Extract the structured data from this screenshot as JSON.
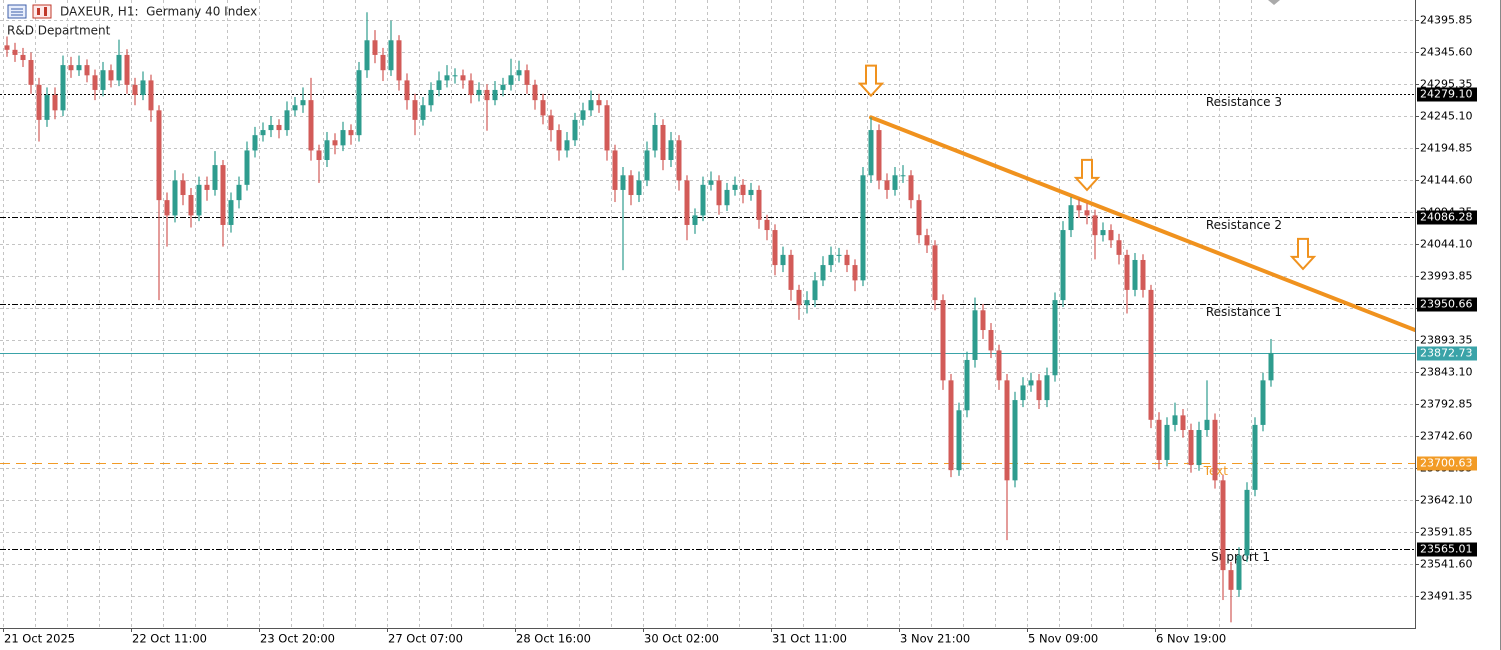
{
  "header": {
    "symbol": "DAXEUR, H1:  Germany 40 Index",
    "owner": "R&D Department"
  },
  "chart_data": {
    "type": "candlestick",
    "up_color": "#2e9c8e",
    "down_color": "#d25b58",
    "grid": true,
    "ylim": [
      23441.1,
      24427.25
    ],
    "yticks": [
      24395.85,
      {
        "value": 24345.6,
        "label": "24345.60"
      },
      24295.35,
      {
        "value": 24245.1,
        "label": "24245.10"
      },
      24194.85,
      {
        "value": 24144.6,
        "label": "24144.60"
      },
      24094.35,
      {
        "value": 24044.1,
        "label": "24044.10"
      },
      23993.85,
      {
        "value": 23943.6,
        "label": "23943.60"
      },
      23893.35,
      {
        "value": 23843.1,
        "label": "23843.10"
      },
      23792.85,
      {
        "value": 23742.6,
        "label": "23742.60"
      },
      23692.35,
      {
        "value": 23642.1,
        "label": "23642.10"
      },
      23591.85,
      {
        "value": 23541.6,
        "label": "23541.60"
      },
      23491.35
    ],
    "categories": [
      "21 Oct 2025",
      null,
      null,
      null,
      null,
      null,
      null,
      null,
      null,
      null,
      null,
      null,
      null,
      null,
      null,
      null,
      "22 Oct 11:00",
      null,
      null,
      null,
      null,
      null,
      null,
      null,
      null,
      null,
      null,
      null,
      null,
      null,
      null,
      null,
      "23 Oct 20:00",
      null,
      null,
      null,
      null,
      null,
      null,
      null,
      null,
      null,
      null,
      null,
      null,
      null,
      null,
      null,
      "27 Oct 07:00",
      null,
      null,
      null,
      null,
      null,
      null,
      null,
      null,
      null,
      null,
      null,
      null,
      null,
      null,
      null,
      "28 Oct 16:00",
      null,
      null,
      null,
      null,
      null,
      null,
      null,
      null,
      null,
      null,
      null,
      null,
      null,
      null,
      null,
      "30 Oct 02:00",
      null,
      null,
      null,
      null,
      null,
      null,
      null,
      null,
      null,
      null,
      null,
      null,
      null,
      null,
      null,
      "31 Oct 11:00",
      null,
      null,
      null,
      null,
      null,
      null,
      null,
      null,
      null,
      null,
      null,
      null,
      null,
      null,
      null,
      "3 Nov 21:00",
      null,
      null,
      null,
      null,
      null,
      null,
      null,
      null,
      null,
      null,
      null,
      null,
      null,
      null,
      null,
      "5 Nov 09:00",
      null,
      null,
      null,
      null,
      null,
      null,
      null,
      null,
      null,
      null,
      null,
      null,
      null,
      null,
      null,
      "6 Nov 19:00",
      null,
      null,
      null,
      null,
      null,
      null,
      null,
      null,
      null,
      null,
      null,
      null,
      null,
      null
    ],
    "ohlc": [
      [
        24356,
        24370,
        24338,
        24349
      ],
      [
        24349,
        24360,
        24330,
        24341
      ],
      [
        24341,
        24352,
        24322,
        24333
      ],
      [
        24333,
        24345,
        24280,
        24294
      ],
      [
        24294,
        24305,
        24205,
        24239
      ],
      [
        24239,
        24290,
        24228,
        24278
      ],
      [
        24278,
        24290,
        24240,
        24254
      ],
      [
        24254,
        24340,
        24245,
        24325
      ],
      [
        24325,
        24338,
        24305,
        24317
      ],
      [
        24317,
        24340,
        24308,
        24325
      ],
      [
        24325,
        24334,
        24298,
        24309
      ],
      [
        24309,
        24318,
        24270,
        24286
      ],
      [
        24286,
        24330,
        24276,
        24317
      ],
      [
        24317,
        24326,
        24290,
        24301
      ],
      [
        24301,
        24365,
        24292,
        24341
      ],
      [
        24341,
        24350,
        24280,
        24294
      ],
      [
        24294,
        24305,
        24262,
        24278
      ],
      [
        24278,
        24315,
        24270,
        24301
      ],
      [
        24301,
        24310,
        24236,
        24254
      ],
      [
        24254,
        24262,
        23956,
        24113
      ],
      [
        24113,
        24125,
        24040,
        24089
      ],
      [
        24089,
        24160,
        24078,
        24144
      ],
      [
        24144,
        24155,
        24105,
        24121
      ],
      [
        24121,
        24132,
        24070,
        24089
      ],
      [
        24089,
        24150,
        24080,
        24137
      ],
      [
        24137,
        24150,
        24112,
        24129
      ],
      [
        24129,
        24190,
        24120,
        24168
      ],
      [
        24168,
        24176,
        24040,
        24074
      ],
      [
        24074,
        24125,
        24062,
        24113
      ],
      [
        24113,
        24150,
        24100,
        24137
      ],
      [
        24137,
        24205,
        24128,
        24191
      ],
      [
        24191,
        24228,
        24180,
        24215
      ],
      [
        24215,
        24235,
        24205,
        24223
      ],
      [
        24223,
        24245,
        24212,
        24231
      ],
      [
        24231,
        24240,
        24210,
        24223
      ],
      [
        24223,
        24268,
        24214,
        24254
      ],
      [
        24254,
        24275,
        24245,
        24262
      ],
      [
        24262,
        24290,
        24250,
        24270
      ],
      [
        24270,
        24305,
        24175,
        24191
      ],
      [
        24191,
        24200,
        24140,
        24176
      ],
      [
        24176,
        24220,
        24165,
        24207
      ],
      [
        24207,
        24218,
        24185,
        24199
      ],
      [
        24199,
        24236,
        24190,
        24223
      ],
      [
        24223,
        24232,
        24200,
        24215
      ],
      [
        24215,
        24330,
        24205,
        24317
      ],
      [
        24317,
        24408,
        24305,
        24364
      ],
      [
        24364,
        24380,
        24328,
        24341
      ],
      [
        24341,
        24352,
        24300,
        24317
      ],
      [
        24317,
        24395,
        24308,
        24364
      ],
      [
        24364,
        24372,
        24285,
        24301
      ],
      [
        24301,
        24312,
        24255,
        24270
      ],
      [
        24270,
        24280,
        24215,
        24239
      ],
      [
        24239,
        24275,
        24230,
        24262
      ],
      [
        24262,
        24298,
        24252,
        24286
      ],
      [
        24286,
        24315,
        24276,
        24301
      ],
      [
        24301,
        24325,
        24290,
        24309
      ],
      [
        24309,
        24320,
        24296,
        24309
      ],
      [
        24309,
        24318,
        24288,
        24301
      ],
      [
        24301,
        24312,
        24265,
        24278
      ],
      [
        24278,
        24298,
        24268,
        24286
      ],
      [
        24286,
        24295,
        24222,
        24270
      ],
      [
        24270,
        24300,
        24262,
        24286
      ],
      [
        24286,
        24305,
        24276,
        24294
      ],
      [
        24294,
        24335,
        24285,
        24309
      ],
      [
        24309,
        24332,
        24300,
        24317
      ],
      [
        24317,
        24326,
        24280,
        24294
      ],
      [
        24294,
        24302,
        24255,
        24270
      ],
      [
        24270,
        24280,
        24232,
        24246
      ],
      [
        24246,
        24255,
        24205,
        24223
      ],
      [
        24223,
        24232,
        24175,
        24191
      ],
      [
        24191,
        24220,
        24180,
        24207
      ],
      [
        24207,
        24250,
        24198,
        24239
      ],
      [
        24239,
        24266,
        24230,
        24254
      ],
      [
        24254,
        24285,
        24245,
        24270
      ],
      [
        24270,
        24280,
        24250,
        24262
      ],
      [
        24262,
        24270,
        24175,
        24191
      ],
      [
        24191,
        24200,
        24110,
        24129
      ],
      [
        24129,
        24165,
        24003,
        24152
      ],
      [
        24152,
        24160,
        24105,
        24121
      ],
      [
        24121,
        24158,
        24110,
        24144
      ],
      [
        24144,
        24205,
        24135,
        24191
      ],
      [
        24191,
        24250,
        24180,
        24231
      ],
      [
        24231,
        24240,
        24160,
        24176
      ],
      [
        24176,
        24220,
        24165,
        24207
      ],
      [
        24207,
        24215,
        24128,
        24144
      ],
      [
        24144,
        24152,
        24050,
        24074
      ],
      [
        24074,
        24100,
        24060,
        24089
      ],
      [
        24089,
        24150,
        24080,
        24137
      ],
      [
        24137,
        24158,
        24128,
        24144
      ],
      [
        24144,
        24152,
        24090,
        24105
      ],
      [
        24105,
        24140,
        24096,
        24129
      ],
      [
        24129,
        24150,
        24120,
        24137
      ],
      [
        24137,
        24146,
        24108,
        24121
      ],
      [
        24121,
        24140,
        24112,
        24129
      ],
      [
        24129,
        24136,
        24068,
        24082
      ],
      [
        24082,
        24090,
        24050,
        24066
      ],
      [
        24066,
        24075,
        23995,
        24011
      ],
      [
        24011,
        24040,
        24000,
        24027
      ],
      [
        24027,
        24035,
        23955,
        23972
      ],
      [
        23972,
        23980,
        23925,
        23948
      ],
      [
        23948,
        23970,
        23935,
        23956
      ],
      [
        23956,
        24000,
        23945,
        23987
      ],
      [
        23987,
        24025,
        23978,
        24011
      ],
      [
        24011,
        24040,
        24000,
        24027
      ],
      [
        24027,
        24038,
        24015,
        24027
      ],
      [
        24027,
        24035,
        24000,
        24011
      ],
      [
        24011,
        24020,
        23970,
        23987
      ],
      [
        23987,
        24165,
        23978,
        24152
      ],
      [
        24152,
        24243,
        24140,
        24223
      ],
      [
        24223,
        24232,
        24130,
        24144
      ],
      [
        24144,
        24155,
        24115,
        24129
      ],
      [
        24129,
        24165,
        24120,
        24152
      ],
      [
        24152,
        24168,
        24140,
        24152
      ],
      [
        24152,
        24160,
        24100,
        24113
      ],
      [
        24113,
        24122,
        24045,
        24058
      ],
      [
        24058,
        24068,
        24030,
        24042
      ],
      [
        24042,
        24050,
        23940,
        23956
      ],
      [
        23956,
        23965,
        23815,
        23830
      ],
      [
        23830,
        23840,
        23678,
        23689
      ],
      [
        23689,
        23795,
        23680,
        23783
      ],
      [
        23783,
        23875,
        23772,
        23862
      ],
      [
        23862,
        23960,
        23850,
        23940
      ],
      [
        23940,
        23950,
        23895,
        23909
      ],
      [
        23909,
        23920,
        23865,
        23877
      ],
      [
        23877,
        23886,
        23815,
        23830
      ],
      [
        23830,
        23840,
        23579,
        23673
      ],
      [
        23673,
        23812,
        23662,
        23799
      ],
      [
        23799,
        23835,
        23788,
        23822
      ],
      [
        23822,
        23842,
        23812,
        23830
      ],
      [
        23830,
        23840,
        23785,
        23799
      ],
      [
        23799,
        23850,
        23788,
        23838
      ],
      [
        23838,
        23968,
        23828,
        23956
      ],
      [
        23956,
        24080,
        23945,
        24066
      ],
      [
        24066,
        24118,
        24055,
        24105
      ],
      [
        24105,
        24115,
        24085,
        24097
      ],
      [
        24097,
        24108,
        24075,
        24089
      ],
      [
        24089,
        24098,
        24020,
        24058
      ],
      [
        24058,
        24078,
        24048,
        24066
      ],
      [
        24066,
        24075,
        24038,
        24050
      ],
      [
        24050,
        24060,
        24012,
        24027
      ],
      [
        24027,
        24035,
        23935,
        23972
      ],
      [
        23972,
        24030,
        23962,
        24019
      ],
      [
        24019,
        24028,
        23960,
        23972
      ],
      [
        23972,
        23980,
        23755,
        23768
      ],
      [
        23768,
        23780,
        23690,
        23705
      ],
      [
        23705,
        23772,
        23695,
        23760
      ],
      [
        23760,
        23795,
        23750,
        23775
      ],
      [
        23775,
        23785,
        23740,
        23752
      ],
      [
        23752,
        23762,
        23685,
        23697
      ],
      [
        23697,
        23765,
        23688,
        23752
      ],
      [
        23752,
        23830,
        23742,
        23768
      ],
      [
        23768,
        23778,
        23660,
        23673
      ],
      [
        23673,
        23682,
        23485,
        23532
      ],
      [
        23532,
        23545,
        23450,
        23501
      ],
      [
        23501,
        23568,
        23490,
        23555
      ],
      [
        23555,
        23670,
        23545,
        23658
      ],
      [
        23658,
        23772,
        23648,
        23760
      ],
      [
        23760,
        23842,
        23750,
        23830
      ],
      [
        23830,
        23895,
        23820,
        23873
      ]
    ],
    "hlines": [
      {
        "name": "Resistance 3",
        "value": 24279.1,
        "value_label": "24279.10",
        "color": "#000000",
        "style": "dotted"
      },
      {
        "name": "Resistance 2",
        "value": 24086.28,
        "color": "#000000",
        "style": "dashdot"
      },
      {
        "name": "Resistance 1",
        "value": 23950.66,
        "color": "#000000",
        "style": "dashdot"
      },
      {
        "value": 23872.73,
        "color": "#3aa3a8",
        "style": "solid"
      },
      {
        "name": "Text",
        "value": 23700.63,
        "color": "#f29b26",
        "style": "dashed"
      },
      {
        "name": "Support 1",
        "value": 23565.01,
        "color": "#000000",
        "style": "dashdot"
      }
    ],
    "trendline": {
      "start": [
        108,
        24243
      ],
      "end": [
        176,
        23909
      ],
      "color": "#f0921e"
    },
    "arrows": {
      "color": "#f0921e",
      "points": [
        [
          108,
          24277
        ],
        [
          135,
          24129
        ],
        [
          162,
          24005
        ]
      ]
    }
  }
}
